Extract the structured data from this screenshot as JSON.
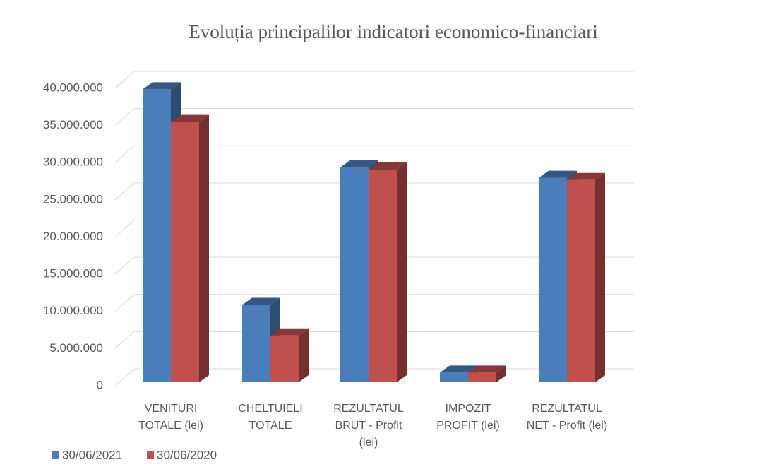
{
  "chart_data": {
    "type": "bar3d",
    "title": "Evoluția principalilor indicatori economico-financiari",
    "categories": [
      "VENITURI TOTALE (lei)",
      "CHELTUIELI TOTALE",
      "REZULTATUL BRUT - Profit (lei)",
      "IMPOZIT PROFIT (lei)",
      "REZULTATUL NET - Profit (lei)"
    ],
    "series": [
      {
        "name": "30/06/2021",
        "color": "#4a7ebb",
        "values": [
          39400000,
          10400000,
          28900000,
          1300000,
          27500000
        ]
      },
      {
        "name": "30/06/2020",
        "color": "#c0504d",
        "values": [
          35000000,
          6300000,
          28600000,
          1300000,
          27200000
        ]
      }
    ],
    "ylim": [
      0,
      40000000
    ],
    "yticks": [
      0,
      {
        "value": 5000000,
        "label": "5.000.000"
      },
      {
        "value": 10000000,
        "label": "10.000.000"
      },
      {
        "value": 15000000,
        "label": "15.000.000"
      },
      {
        "value": 20000000,
        "label": "20.000.000"
      },
      {
        "value": 25000000,
        "label": "25.000.000"
      },
      {
        "value": 30000000,
        "label": "30.000.000"
      },
      {
        "value": 35000000,
        "label": "35.000.000"
      },
      {
        "value": 40000000,
        "label": "40.000.000"
      }
    ],
    "grid": true
  }
}
